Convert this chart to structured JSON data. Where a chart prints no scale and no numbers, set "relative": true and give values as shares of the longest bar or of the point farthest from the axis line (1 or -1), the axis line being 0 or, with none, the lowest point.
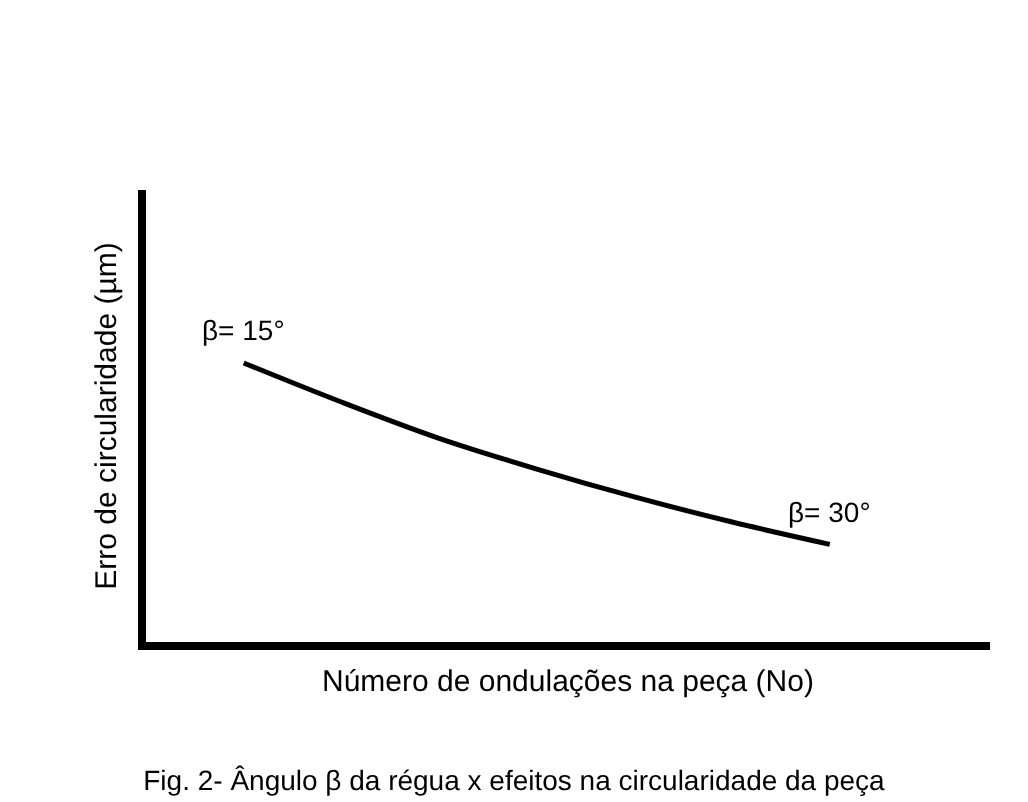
{
  "chart_data": {
    "type": "line",
    "relative": true,
    "title": "Fig. 2- Ângulo β da régua x efeitos na circularidade da peça",
    "xlabel": "Número de ondulações na peça (No)",
    "ylabel": "Erro de circularidade (µm)",
    "categories": [
      null,
      null,
      null,
      null,
      null,
      null,
      null
    ],
    "series": [
      {
        "color": "#000000",
        "values": [
          1,
          0.86,
          0.73,
          0.62,
          0.52,
          0.43,
          0.35
        ]
      }
    ],
    "annotations": [
      "β= 15°",
      "β= 30°"
    ],
    "marker": "none",
    "line_style": "solid",
    "tick_labels": false
  }
}
